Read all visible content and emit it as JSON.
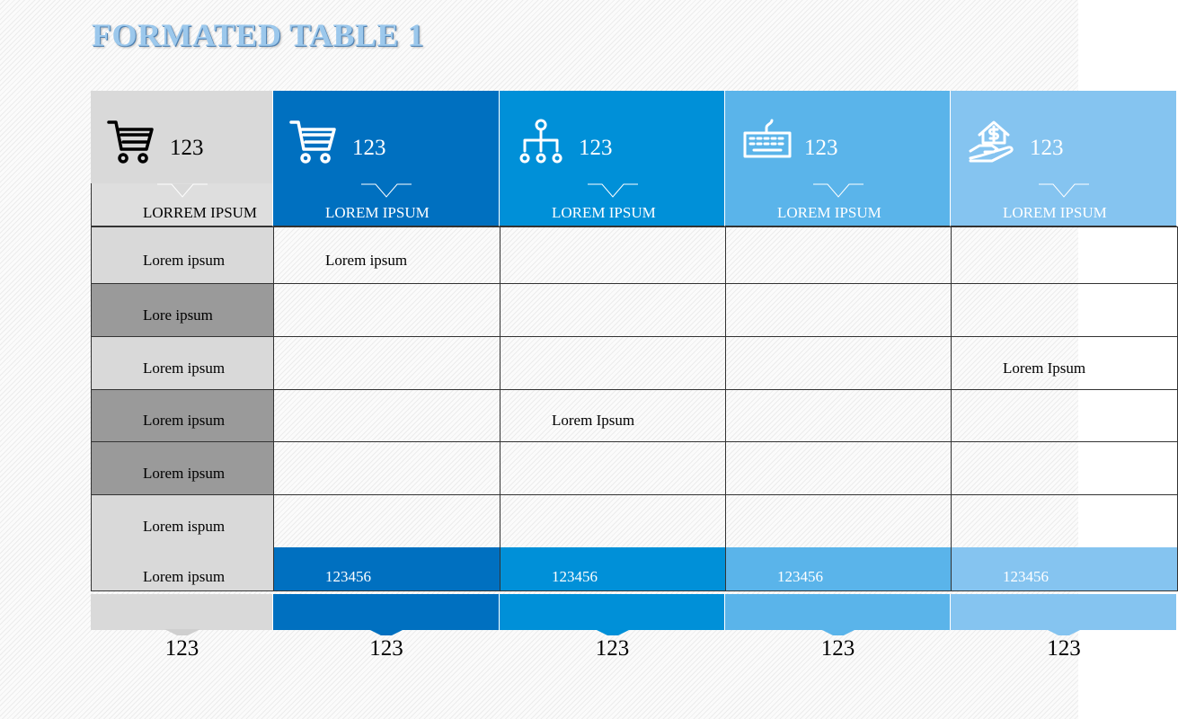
{
  "title": "FORMATED TABLE 1",
  "table": {
    "columns": [
      {
        "value": "123",
        "heading": "LORREM IPSUM",
        "total": null,
        "bottom": "123"
      },
      {
        "value": "123",
        "heading": "LOREM IPSUM",
        "total": "123456",
        "bottom": "123"
      },
      {
        "value": "123",
        "heading": "LOREM IPSUM",
        "total": "123456",
        "bottom": "123"
      },
      {
        "value": "123",
        "heading": "LOREM IPSUM",
        "total": "123456",
        "bottom": "123"
      },
      {
        "value": "123",
        "heading": "LOREM IPSUM",
        "total": "123456",
        "bottom": "123"
      }
    ],
    "rows": [
      [
        "Lorem ipsum",
        "Lorem ipsum",
        null,
        null,
        null
      ],
      [
        "Lore ipsum",
        null,
        null,
        null,
        null
      ],
      [
        "Lorem ipsum",
        null,
        null,
        null,
        "Lorem Ipsum"
      ],
      [
        "Lorem ipsum",
        null,
        "Lorem Ipsum",
        null,
        null
      ],
      [
        "Lorem ipsum",
        null,
        null,
        null,
        null
      ],
      [
        "Lorem ispum",
        null,
        null,
        null,
        null
      ]
    ],
    "total_label": "Lorem ipsum"
  }
}
